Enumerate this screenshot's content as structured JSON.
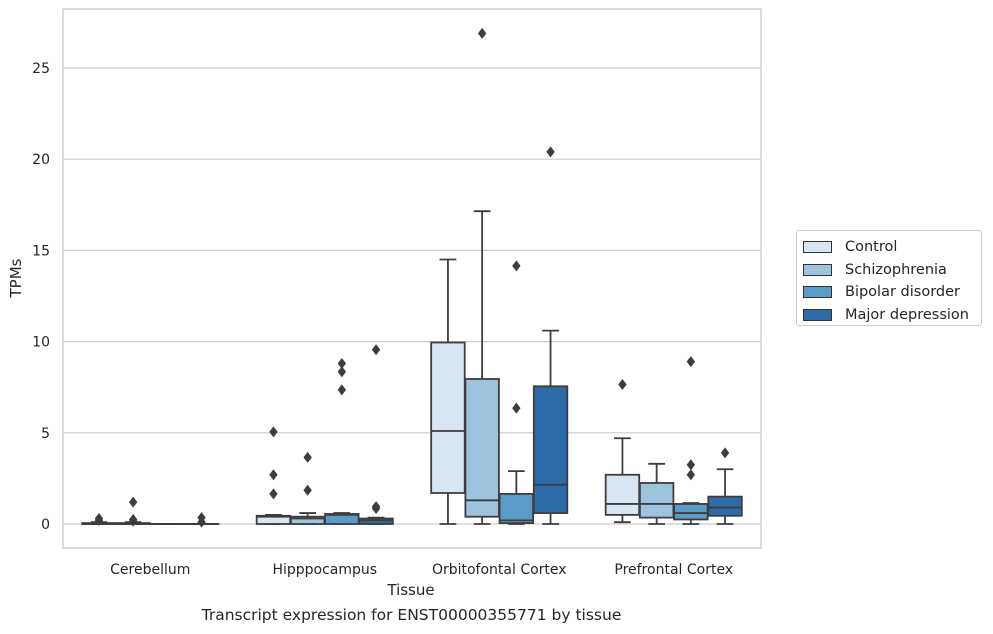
{
  "chart_data": {
    "type": "box",
    "xlabel": "Tissue",
    "ylabel": "TPMs",
    "caption": "Transcript expression for ENST00000355771 by tissue",
    "categories": [
      "Cerebellum",
      "Hipppocampus",
      "Orbitofontal Cortex",
      "Prefrontal Cortex"
    ],
    "ylim": [
      -1.3,
      28.4
    ],
    "yticks": [
      0,
      5,
      10,
      15,
      20,
      25
    ],
    "grid": "horizontal",
    "legend_position": "right",
    "series": [
      {
        "name": "Control",
        "color": "#d8e6f3",
        "boxes": [
          {
            "whislo": 0,
            "q1": 0,
            "med": 0,
            "q3": 0.05,
            "whishi": 0.1,
            "fliers": [
              0.2,
              0.3
            ]
          },
          {
            "whislo": 0,
            "q1": 0,
            "med": 0.4,
            "q3": 0.45,
            "whishi": 0.5,
            "fliers": [
              1.65,
              2.7,
              5.05
            ]
          },
          {
            "whislo": 0,
            "q1": 1.7,
            "med": 5.1,
            "q3": 9.95,
            "whishi": 14.5,
            "fliers": []
          },
          {
            "whislo": 0.1,
            "q1": 0.5,
            "med": 1.1,
            "q3": 2.7,
            "whishi": 4.7,
            "fliers": [
              7.65
            ]
          }
        ]
      },
      {
        "name": "Schizophrenia",
        "color": "#9dc4dd",
        "boxes": [
          {
            "whislo": 0,
            "q1": 0,
            "med": 0,
            "q3": 0.05,
            "whishi": 0.1,
            "fliers": [
              0.15,
              0.25,
              1.2
            ]
          },
          {
            "whislo": 0,
            "q1": 0,
            "med": 0.3,
            "q3": 0.4,
            "whishi": 0.6,
            "fliers": [
              1.85,
              3.65
            ]
          },
          {
            "whislo": 0,
            "q1": 0.4,
            "med": 1.3,
            "q3": 7.95,
            "whishi": 17.15,
            "fliers": [
              26.9
            ]
          },
          {
            "whislo": 0,
            "q1": 0.35,
            "med": 1.1,
            "q3": 2.25,
            "whishi": 3.3,
            "fliers": []
          }
        ]
      },
      {
        "name": "Bipolar disorder",
        "color": "#5b9bc8",
        "boxes": [
          {
            "whislo": 0,
            "q1": 0,
            "med": 0,
            "q3": 0,
            "whishi": 0,
            "fliers": []
          },
          {
            "whislo": 0,
            "q1": 0,
            "med": 0.5,
            "q3": 0.55,
            "whishi": 0.6,
            "fliers": [
              7.35,
              8.35,
              8.8
            ]
          },
          {
            "whislo": 0,
            "q1": 0.05,
            "med": 0.2,
            "q3": 1.65,
            "whishi": 2.9,
            "fliers": [
              6.35,
              14.15
            ]
          },
          {
            "whislo": 0,
            "q1": 0.25,
            "med": 0.6,
            "q3": 1.1,
            "whishi": 1.15,
            "fliers": [
              2.7,
              3.25,
              8.9
            ]
          }
        ]
      },
      {
        "name": "Major depression",
        "color": "#2e6ca9",
        "boxes": [
          {
            "whislo": 0,
            "q1": 0,
            "med": 0,
            "q3": 0,
            "whishi": 0,
            "fliers": [
              0.1,
              0.35
            ]
          },
          {
            "whislo": 0,
            "q1": 0,
            "med": 0.2,
            "q3": 0.3,
            "whishi": 0.35,
            "fliers": [
              0.85,
              0.95,
              9.55
            ]
          },
          {
            "whislo": 0,
            "q1": 0.6,
            "med": 2.15,
            "q3": 7.55,
            "whishi": 10.6,
            "fliers": [
              20.4
            ]
          },
          {
            "whislo": 0,
            "q1": 0.45,
            "med": 0.9,
            "q3": 1.5,
            "whishi": 3.0,
            "fliers": [
              3.9
            ]
          }
        ]
      }
    ]
  }
}
